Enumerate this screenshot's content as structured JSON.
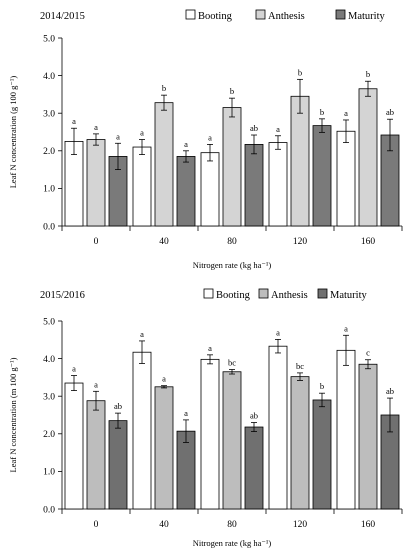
{
  "chart_data": [
    {
      "type": "bar",
      "title": "2014/2015",
      "xlabel": "Nitrogen rate (kg ha⁻¹)",
      "ylabel": "Leaf N concentration (g 100 g⁻¹)",
      "categories": [
        "0",
        "40",
        "80",
        "120",
        "160"
      ],
      "ylim": [
        0,
        5
      ],
      "yticks": [
        "0.0",
        "1.0",
        "2.0",
        "3.0",
        "4.0",
        "5.0"
      ],
      "legend_position": "top-right",
      "series": [
        {
          "name": "Booting",
          "color": "#ffffff",
          "values": [
            2.25,
            2.1,
            1.95,
            2.22,
            2.52
          ],
          "errors": [
            0.35,
            0.2,
            0.22,
            0.18,
            0.3
          ],
          "letters": [
            "a",
            "a",
            "a",
            "a",
            "a"
          ]
        },
        {
          "name": "Anthesis",
          "color": "#d4d4d4",
          "values": [
            2.3,
            3.28,
            3.15,
            3.45,
            3.65
          ],
          "errors": [
            0.15,
            0.2,
            0.25,
            0.45,
            0.2
          ],
          "letters": [
            "a",
            "b",
            "b",
            "b",
            "b"
          ]
        },
        {
          "name": "Maturity",
          "color": "#7a7a7a",
          "values": [
            1.85,
            1.85,
            2.17,
            2.67,
            2.42
          ],
          "errors": [
            0.35,
            0.15,
            0.25,
            0.18,
            0.42
          ],
          "letters": [
            "a",
            "a",
            "ab",
            "b",
            "ab"
          ]
        }
      ]
    },
    {
      "type": "bar",
      "title": "2015/2016",
      "xlabel": "Nitrogen rate (kg ha⁻¹)",
      "ylabel": "Leaf N concentration (m 100 g⁻¹)",
      "categories": [
        "0",
        "40",
        "80",
        "120",
        "160"
      ],
      "ylim": [
        0,
        5
      ],
      "yticks": [
        "0.0",
        "1.0",
        "2.0",
        "3.0",
        "4.0",
        "5.0"
      ],
      "legend_position": "top-right",
      "series": [
        {
          "name": "Booting",
          "color": "#ffffff",
          "values": [
            3.35,
            4.17,
            3.98,
            4.33,
            4.22
          ],
          "errors": [
            0.2,
            0.3,
            0.12,
            0.18,
            0.4
          ],
          "letters": [
            "a",
            "a",
            "a",
            "a",
            "a"
          ]
        },
        {
          "name": "Anthesis",
          "color": "#bdbdbd",
          "values": [
            2.88,
            3.25,
            3.65,
            3.52,
            3.85
          ],
          "errors": [
            0.25,
            0.03,
            0.06,
            0.1,
            0.12
          ],
          "letters": [
            "a",
            "a",
            "bc",
            "bc",
            "c"
          ]
        },
        {
          "name": "Maturity",
          "color": "#707070",
          "values": [
            2.35,
            2.07,
            2.18,
            2.9,
            2.5
          ],
          "errors": [
            0.2,
            0.3,
            0.12,
            0.18,
            0.45
          ],
          "letters": [
            "ab",
            "a",
            "ab",
            "b",
            "ab"
          ]
        }
      ]
    }
  ]
}
